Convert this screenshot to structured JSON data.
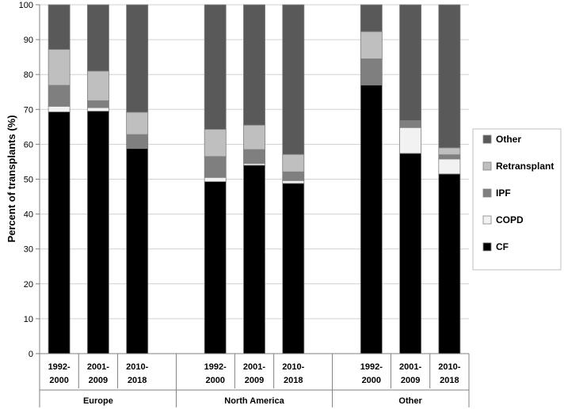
{
  "chart_data": {
    "type": "bar",
    "stacked": true,
    "ylabel": "Percent of transplants (%)",
    "xlabel": "",
    "ylim": [
      0,
      100
    ],
    "yticks": [
      0,
      10,
      20,
      30,
      40,
      50,
      60,
      70,
      80,
      90,
      100
    ],
    "grid": "horizontal",
    "legend_position": "right",
    "groups": [
      {
        "name": "Europe",
        "categories": [
          "1992-\n2000",
          "2001-\n2009",
          "2010-\n2018"
        ]
      },
      {
        "name": "North America",
        "categories": [
          "1992-\n2000",
          "2001-\n2009",
          "2010-\n2018"
        ]
      },
      {
        "name": "Other",
        "categories": [
          "1992-\n2000",
          "2001-\n2009",
          "2010-\n2018"
        ]
      }
    ],
    "series": [
      {
        "name": "CF",
        "color": "#000000",
        "values": [
          69.3,
          69.5,
          58.8,
          49.3,
          54.0,
          48.8,
          77.0,
          57.4,
          51.5
        ]
      },
      {
        "name": "COPD",
        "color": "#f2f2f2",
        "values": [
          1.6,
          1.0,
          0.0,
          1.2,
          0.5,
          0.8,
          0.0,
          7.4,
          4.3
        ]
      },
      {
        "name": "IPF",
        "color": "#7f7f7f",
        "values": [
          6.0,
          2.0,
          4.0,
          6.0,
          4.0,
          2.5,
          7.5,
          2.0,
          1.2
        ]
      },
      {
        "name": "Retransplant",
        "color": "#bfbfbf",
        "values": [
          10.3,
          8.5,
          6.4,
          7.8,
          7.0,
          5.0,
          7.8,
          0.0,
          2.0
        ]
      },
      {
        "name": "Other",
        "color": "#595959",
        "values": [
          12.8,
          19.0,
          30.8,
          35.7,
          34.5,
          42.9,
          7.7,
          33.2,
          41.0
        ]
      }
    ],
    "legend_order": [
      "Other",
      "Retransplant",
      "IPF",
      "COPD",
      "CF"
    ]
  }
}
